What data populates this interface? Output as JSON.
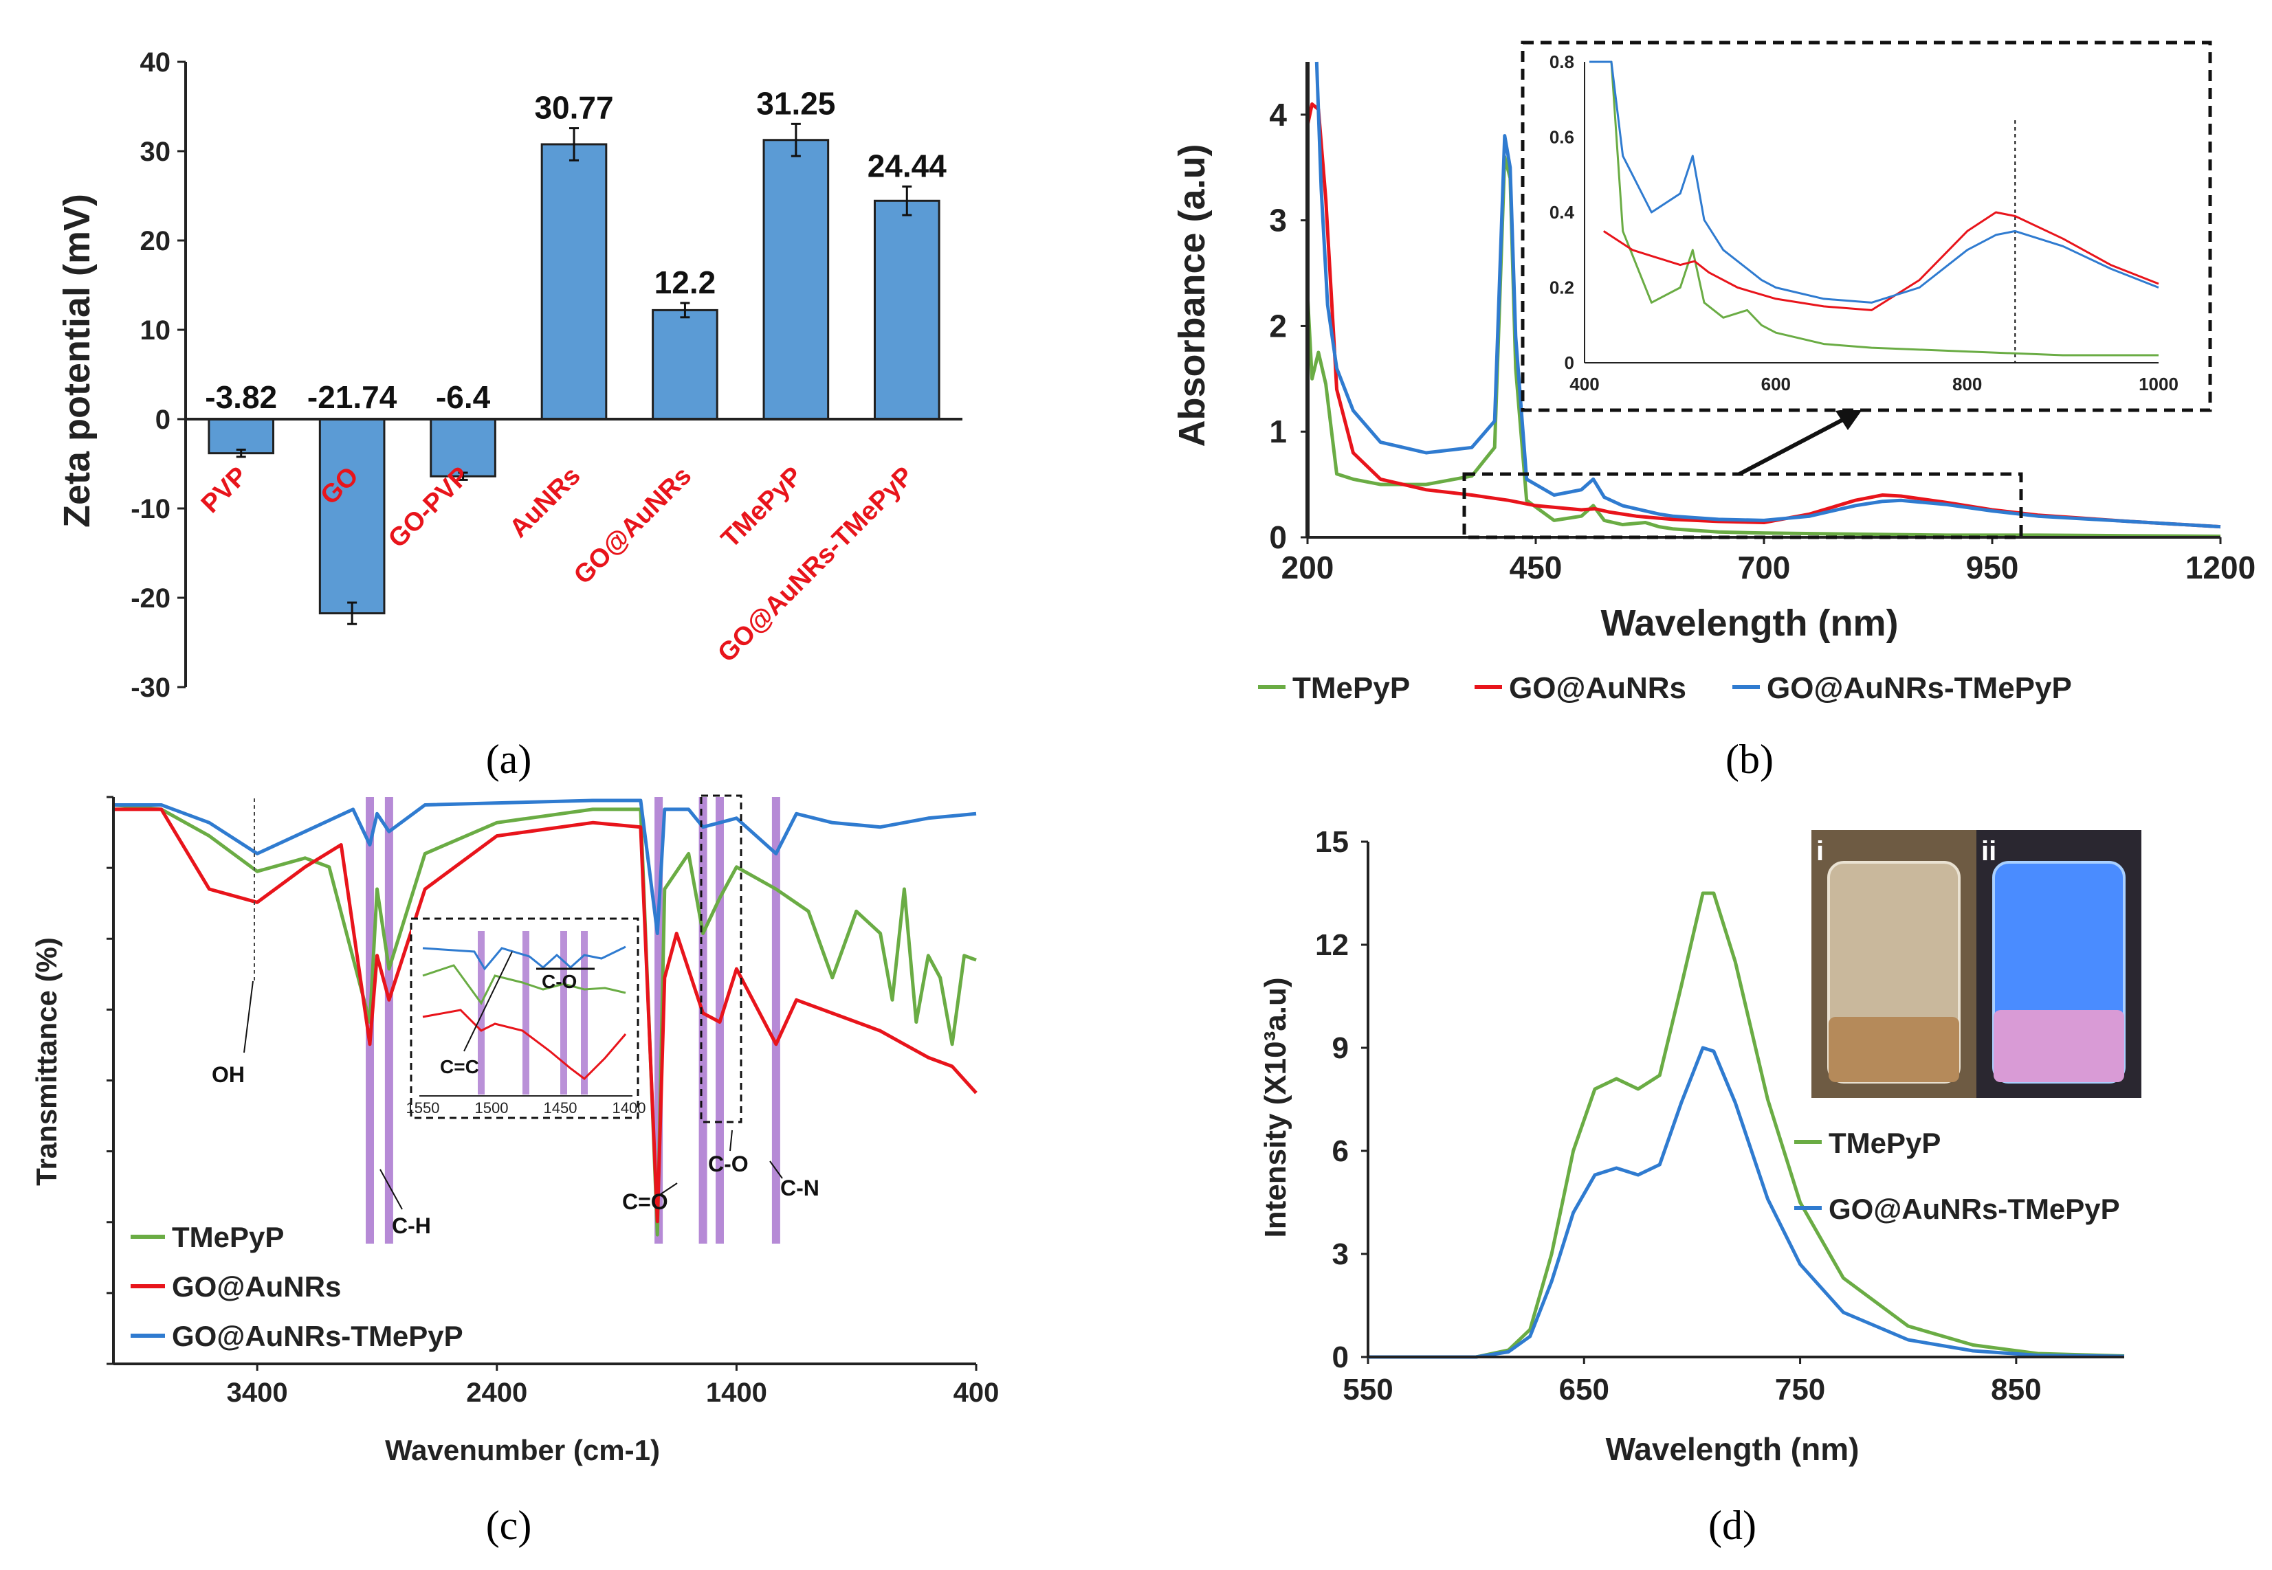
{
  "colors": {
    "green": "#6aac44",
    "red": "#e8141b",
    "blue": "#2f7bd0",
    "bar": "#5b9bd5",
    "bar_edge": "#1f1f1f",
    "label_red": "#e8141b",
    "band": "#9d63c8"
  },
  "panel_labels": [
    "(a)",
    "(b)",
    "(c)",
    "(d)"
  ],
  "chart_data": [
    {
      "type": "bar",
      "panel": "(a)",
      "categories": [
        "PVP",
        "GO",
        "GO-PVP",
        "AuNRs",
        "GO@AuNRs",
        "TMePyP",
        "GO@AuNRs-TMePyP"
      ],
      "values": [
        -3.82,
        -21.74,
        -6.4,
        30.77,
        12.2,
        31.25,
        24.44
      ],
      "value_labels": [
        "-3.82",
        "-21.74",
        "-6.4",
        "30.77",
        "12.2",
        "31.25",
        "24.44"
      ],
      "errors": [
        0.4,
        1.2,
        0.4,
        1.8,
        0.8,
        1.8,
        1.6
      ],
      "ylabel": "Zeta potential (mV)",
      "ylim": [
        -30,
        40
      ],
      "yticks": [
        "40",
        "30",
        "20",
        "10",
        "0",
        "-10",
        "-20",
        "-30"
      ]
    },
    {
      "type": "line",
      "panel": "(b)",
      "xlabel": "Wavelength (nm)",
      "ylabel": "Absorbance (a.u)",
      "xlim": [
        200,
        1200
      ],
      "ylim": [
        0,
        4.5
      ],
      "xticks": [
        "200",
        "450",
        "700",
        "950",
        "1200"
      ],
      "yticks": [
        "0",
        "1",
        "2",
        "3",
        "4"
      ],
      "legend": [
        "TMePyP",
        "GO@AuNRs",
        "GO@AuNRs-TMePyP"
      ],
      "series": [
        {
          "name": "TMePyP",
          "x": [
            200,
            205,
            212,
            220,
            232,
            250,
            280,
            330,
            380,
            405,
            416,
            422,
            428,
            440,
            470,
            500,
            513,
            525,
            545,
            570,
            585,
            600,
            650,
            700,
            800,
            900,
            1000,
            1100,
            1200
          ],
          "y": [
            2.3,
            1.5,
            1.75,
            1.45,
            0.6,
            0.55,
            0.5,
            0.5,
            0.58,
            0.85,
            3.6,
            3.4,
            1.6,
            0.35,
            0.16,
            0.2,
            0.3,
            0.16,
            0.12,
            0.14,
            0.1,
            0.08,
            0.05,
            0.04,
            0.03,
            0.02,
            0.02,
            0.015,
            0.01
          ]
        },
        {
          "name": "GO@AuNRs",
          "x": [
            200,
            205,
            212,
            220,
            232,
            250,
            280,
            330,
            380,
            420,
            450,
            500,
            515,
            530,
            560,
            600,
            650,
            700,
            750,
            800,
            830,
            850,
            900,
            950,
            1000,
            1100,
            1200
          ],
          "y": [
            3.9,
            4.1,
            4.05,
            3.2,
            1.4,
            0.8,
            0.55,
            0.45,
            0.4,
            0.35,
            0.3,
            0.26,
            0.27,
            0.24,
            0.2,
            0.17,
            0.15,
            0.14,
            0.22,
            0.35,
            0.4,
            0.39,
            0.33,
            0.26,
            0.21,
            0.15,
            0.1
          ]
        },
        {
          "name": "GO@AuNRs-TMePyP",
          "x": [
            210,
            215,
            222,
            232,
            250,
            280,
            330,
            380,
            405,
            416,
            422,
            428,
            440,
            470,
            500,
            513,
            525,
            545,
            570,
            585,
            600,
            650,
            700,
            750,
            800,
            830,
            850,
            900,
            950,
            1000,
            1100,
            1200
          ],
          "y": [
            4.5,
            3.3,
            2.2,
            1.6,
            1.2,
            0.9,
            0.8,
            0.85,
            1.1,
            3.8,
            3.5,
            1.9,
            0.55,
            0.4,
            0.45,
            0.55,
            0.38,
            0.3,
            0.25,
            0.22,
            0.2,
            0.17,
            0.16,
            0.2,
            0.3,
            0.34,
            0.35,
            0.31,
            0.25,
            0.2,
            0.15,
            0.1
          ]
        }
      ],
      "inset": {
        "xlim": [
          400,
          1000
        ],
        "ylim": [
          0,
          0.8
        ],
        "xticks": [
          "400",
          "600",
          "800",
          "1000"
        ],
        "yticks": [
          "0",
          "0.2",
          "0.4",
          "0.6",
          "0.8"
        ],
        "marker_x": 850
      }
    },
    {
      "type": "line",
      "panel": "(c)",
      "xlabel": "Wavenumber (cm-1)",
      "ylabel": "Transmittance (%)",
      "xlim": [
        4000,
        400
      ],
      "xticks": [
        "3400",
        "2400",
        "1400",
        "400"
      ],
      "legend": [
        "TMePyP",
        "GO@AuNRs",
        "GO@AuNRs-TMePyP"
      ],
      "annotations": [
        "OH",
        "C-H",
        "C=O",
        "C-O",
        "C-N"
      ],
      "inset": {
        "xticks": [
          "1550",
          "1500",
          "1450",
          "1400"
        ],
        "annotations": [
          "C=C",
          "C-O"
        ]
      }
    },
    {
      "type": "line",
      "panel": "(d)",
      "xlabel": "Wavelength (nm)",
      "ylabel": "Intensity (X10³a.u)",
      "xlim": [
        550,
        900
      ],
      "ylim": [
        0,
        15
      ],
      "xticks": [
        "550",
        "650",
        "750",
        "850"
      ],
      "yticks": [
        "0",
        "3",
        "6",
        "9",
        "12",
        "15"
      ],
      "legend": [
        "TMePyP",
        "GO@AuNRs-TMePyP"
      ],
      "series": [
        {
          "name": "TMePyP",
          "x": [
            550,
            600,
            615,
            625,
            635,
            645,
            655,
            665,
            675,
            685,
            695,
            705,
            710,
            720,
            735,
            750,
            770,
            800,
            830,
            860,
            900
          ],
          "y": [
            0,
            0,
            0.2,
            0.8,
            3.0,
            6.0,
            7.8,
            8.1,
            7.8,
            8.2,
            10.8,
            13.5,
            13.5,
            11.5,
            7.5,
            4.5,
            2.3,
            0.9,
            0.35,
            0.1,
            0.03
          ]
        },
        {
          "name": "GO@AuNRs-TMePyP",
          "x": [
            550,
            600,
            615,
            625,
            635,
            645,
            655,
            665,
            675,
            685,
            695,
            705,
            710,
            720,
            735,
            750,
            770,
            800,
            830,
            860,
            900
          ],
          "y": [
            0,
            0,
            0.15,
            0.6,
            2.2,
            4.2,
            5.3,
            5.5,
            5.3,
            5.6,
            7.4,
            9.0,
            8.9,
            7.4,
            4.6,
            2.7,
            1.3,
            0.5,
            0.18,
            0.05,
            0.02
          ]
        }
      ],
      "photo_labels": [
        "i",
        "ii"
      ]
    }
  ]
}
